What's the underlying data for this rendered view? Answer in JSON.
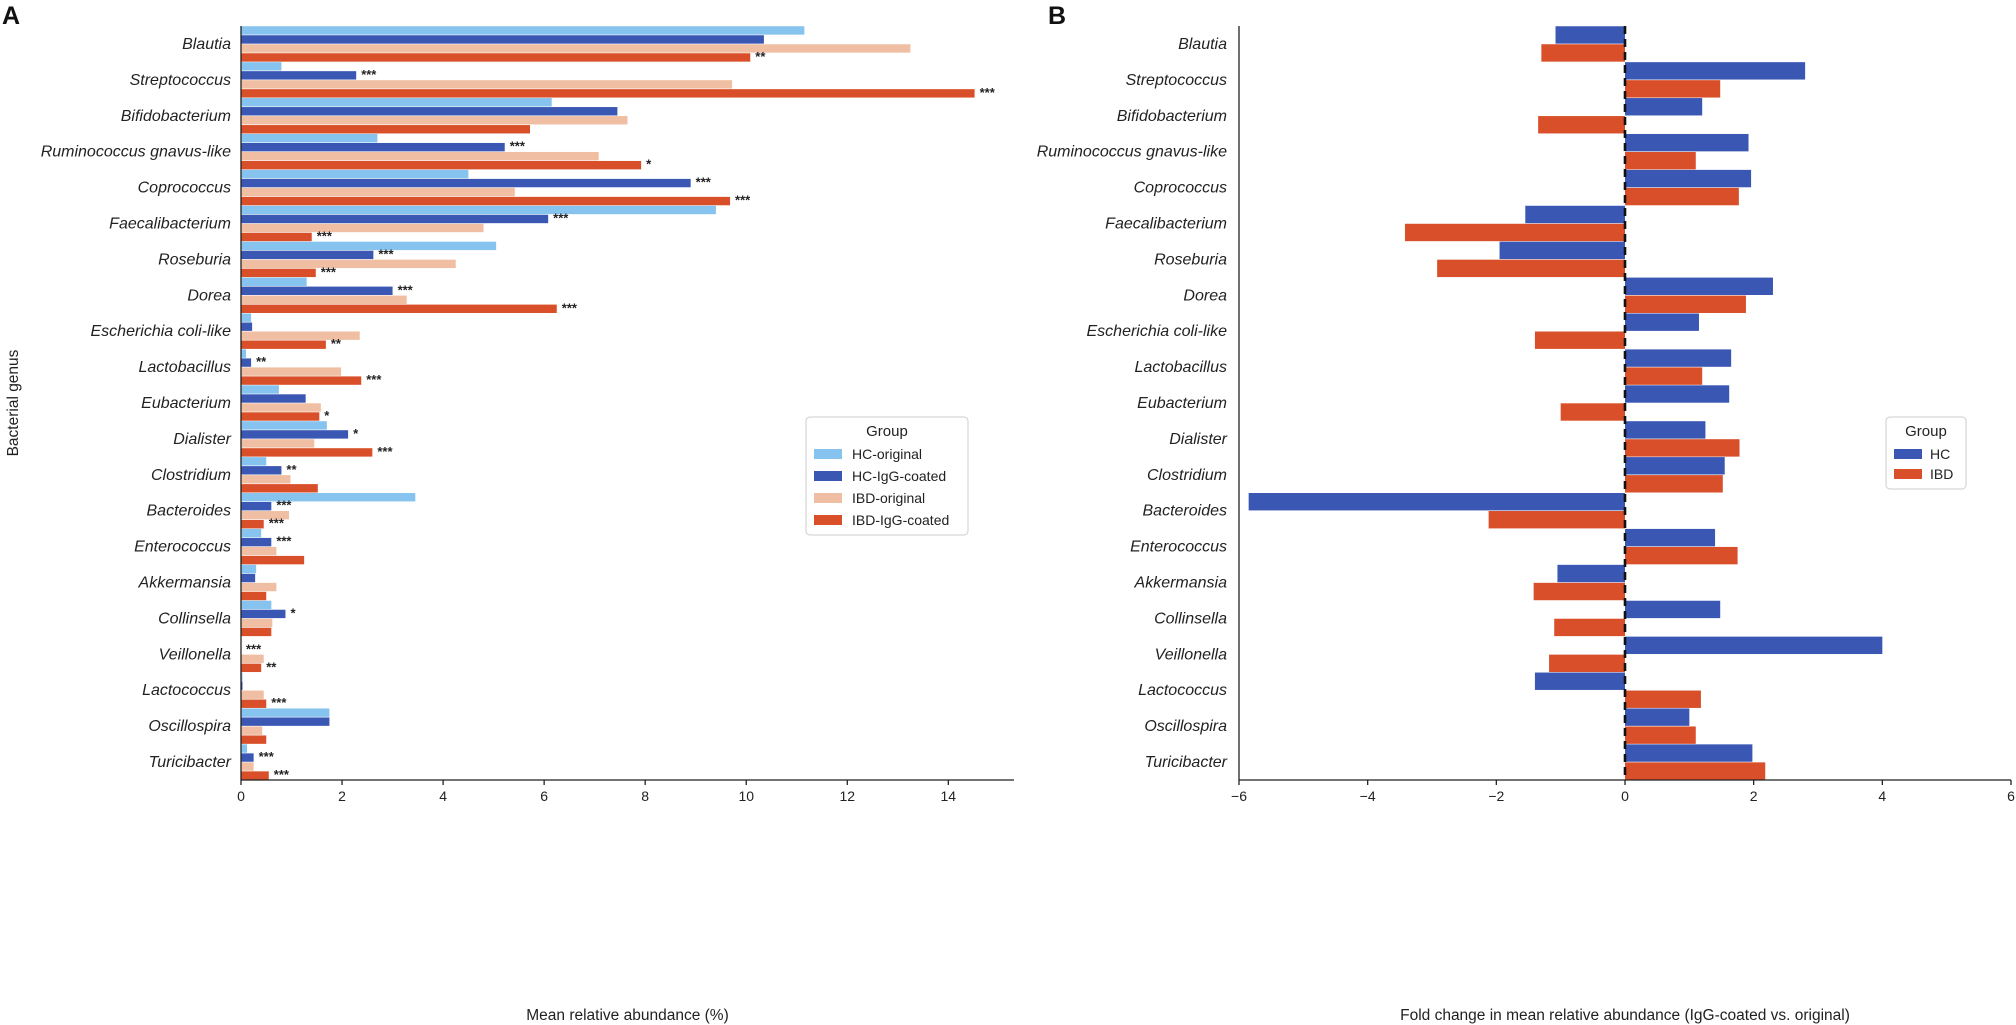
{
  "colors": {
    "hc_original": "#86c3ef",
    "hc_igg": "#3b57b4",
    "ibd_original": "#f0bfa3",
    "ibd_igg": "#d84f29",
    "hc": "#3b57b4",
    "ibd": "#d84f29"
  },
  "chart_data": [
    {
      "panel": "A",
      "type": "bar",
      "orientation": "horizontal",
      "title": "",
      "xlabel": "Mean relative abundance (%)",
      "ylabel": "Bacterial genus",
      "xlim": [
        0,
        15.3
      ],
      "xticks": [
        "0",
        "2",
        "4",
        "6",
        "8",
        "10",
        "12",
        "14"
      ],
      "xtick_values": [
        0,
        2,
        4,
        6,
        8,
        10,
        12,
        14
      ],
      "categories": [
        "Blautia",
        "Streptococcus",
        "Bifidobacterium",
        "Ruminococcus gnavus-like",
        "Coprococcus",
        "Faecalibacterium",
        "Roseburia",
        "Dorea",
        "Escherichia coli-like",
        "Lactobacillus",
        "Eubacterium",
        "Dialister",
        "Clostridium",
        "Bacteroides",
        "Enterococcus",
        "Akkermansia",
        "Collinsella",
        "Veillonella",
        "Lactococcus",
        "Oscillospira",
        "Turicibacter"
      ],
      "legend": {
        "title": "Group",
        "position": "center-right"
      },
      "series": [
        {
          "name": "HC-original",
          "color_key": "hc_original",
          "values": [
            11.15,
            0.8,
            6.15,
            2.7,
            4.5,
            9.4,
            5.05,
            1.3,
            0.2,
            0.1,
            0.75,
            1.7,
            0.5,
            3.45,
            0.4,
            0.3,
            0.6,
            0.0,
            0.03,
            1.75,
            0.12
          ],
          "sig": [
            "",
            "",
            "",
            "",
            "",
            "",
            "",
            "",
            "",
            "",
            "",
            "",
            "",
            "",
            "",
            "",
            "",
            "",
            "",
            "",
            ""
          ]
        },
        {
          "name": "HC-IgG-coated",
          "color_key": "hc_igg",
          "values": [
            10.35,
            2.28,
            7.45,
            5.22,
            8.9,
            6.08,
            2.62,
            3.0,
            0.22,
            0.2,
            1.28,
            2.12,
            0.8,
            0.6,
            0.6,
            0.28,
            0.88,
            0.0,
            0.03,
            1.75,
            0.25
          ],
          "sig": [
            "",
            "***",
            "",
            "***",
            "***",
            "***",
            "***",
            "***",
            "",
            "**",
            "",
            "*",
            "**",
            "***",
            "***",
            "",
            "*",
            "***",
            "",
            "",
            "***"
          ]
        },
        {
          "name": "IBD-original",
          "color_key": "ibd_original",
          "values": [
            13.25,
            9.72,
            7.65,
            7.08,
            5.42,
            4.8,
            4.25,
            3.28,
            2.35,
            1.98,
            1.58,
            1.45,
            0.98,
            0.95,
            0.7,
            0.7,
            0.62,
            0.45,
            0.45,
            0.42,
            0.25
          ],
          "sig": [
            "",
            "",
            "",
            "",
            "",
            "",
            "",
            "",
            "",
            "",
            "",
            "",
            "",
            "",
            "",
            "",
            "",
            "",
            "",
            "",
            ""
          ]
        },
        {
          "name": "IBD-IgG-coated",
          "color_key": "ibd_igg",
          "values": [
            10.08,
            14.52,
            5.72,
            7.92,
            9.68,
            1.4,
            1.48,
            6.25,
            1.68,
            2.38,
            1.55,
            2.6,
            1.52,
            0.45,
            1.25,
            0.5,
            0.6,
            0.4,
            0.5,
            0.5,
            0.55
          ],
          "sig": [
            "**",
            "***",
            "",
            "*",
            "***",
            "***",
            "***",
            "***",
            "**",
            "***",
            "*",
            "***",
            "",
            "***",
            "",
            "",
            "",
            "**",
            "***",
            "",
            "***"
          ]
        }
      ]
    },
    {
      "panel": "B",
      "type": "bar",
      "orientation": "horizontal",
      "title": "",
      "xlabel": "Fold change in mean relative abundance (IgG-coated vs. original)",
      "ylabel": "",
      "xlim": [
        -6,
        6
      ],
      "xticks": [
        "−6",
        "−4",
        "−2",
        "0",
        "2",
        "4",
        "6"
      ],
      "xtick_values": [
        -6,
        -4,
        -2,
        0,
        2,
        4,
        6
      ],
      "categories": [
        "Blautia",
        "Streptococcus",
        "Bifidobacterium",
        "Ruminococcus gnavus-like",
        "Coprococcus",
        "Faecalibacterium",
        "Roseburia",
        "Dorea",
        "Escherichia coli-like",
        "Lactobacillus",
        "Eubacterium",
        "Dialister",
        "Clostridium",
        "Bacteroides",
        "Enterococcus",
        "Akkermansia",
        "Collinsella",
        "Veillonella",
        "Lactococcus",
        "Oscillospira",
        "Turicibacter"
      ],
      "reference_line": 0,
      "legend": {
        "title": "Group",
        "position": "center-right"
      },
      "series": [
        {
          "name": "HC",
          "color_key": "hc",
          "values": [
            -1.08,
            2.8,
            1.2,
            1.92,
            1.96,
            -1.55,
            -1.95,
            2.3,
            1.15,
            1.65,
            1.62,
            1.25,
            1.55,
            -5.85,
            1.4,
            -1.05,
            1.48,
            4.0,
            -1.4,
            1.0,
            1.98
          ]
        },
        {
          "name": "IBD",
          "color_key": "ibd",
          "values": [
            -1.3,
            1.48,
            -1.35,
            1.1,
            1.77,
            -3.42,
            -2.92,
            1.88,
            -1.4,
            1.2,
            -1.0,
            1.78,
            1.52,
            -2.12,
            1.75,
            -1.42,
            -1.1,
            -1.18,
            1.18,
            1.1,
            2.18
          ]
        }
      ]
    }
  ],
  "panel_labels": {
    "a": "A",
    "b": "B"
  }
}
